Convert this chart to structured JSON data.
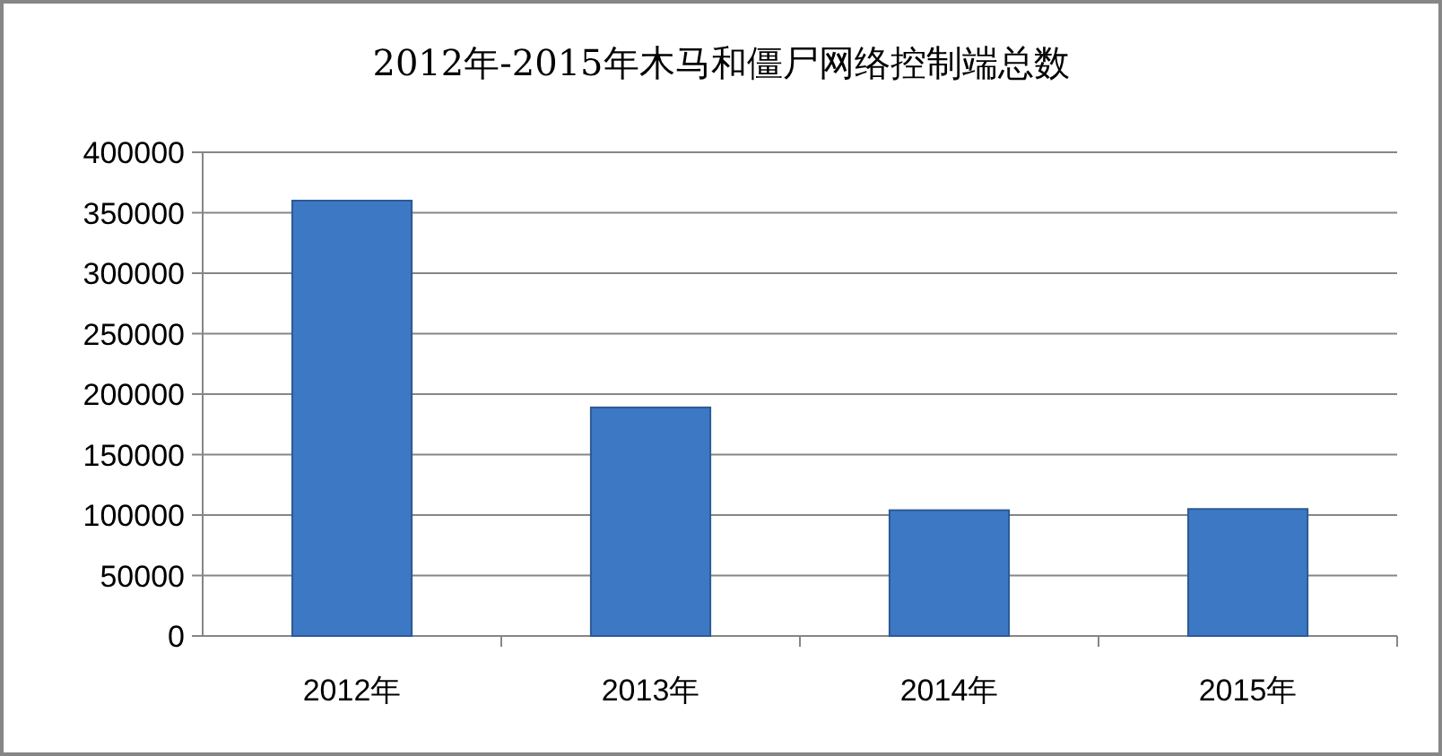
{
  "chart_data": {
    "type": "bar",
    "title": "2012年-2015年木马和僵尸网络控制端总数",
    "categories": [
      "2012年",
      "2013年",
      "2014年",
      "2015年"
    ],
    "values": [
      360000,
      189000,
      104000,
      105000
    ],
    "color": "#3d78c4",
    "ylim": [
      0,
      400000
    ],
    "yticks": [
      0,
      50000,
      100000,
      150000,
      200000,
      250000,
      300000,
      350000,
      400000
    ],
    "grid": "y"
  }
}
